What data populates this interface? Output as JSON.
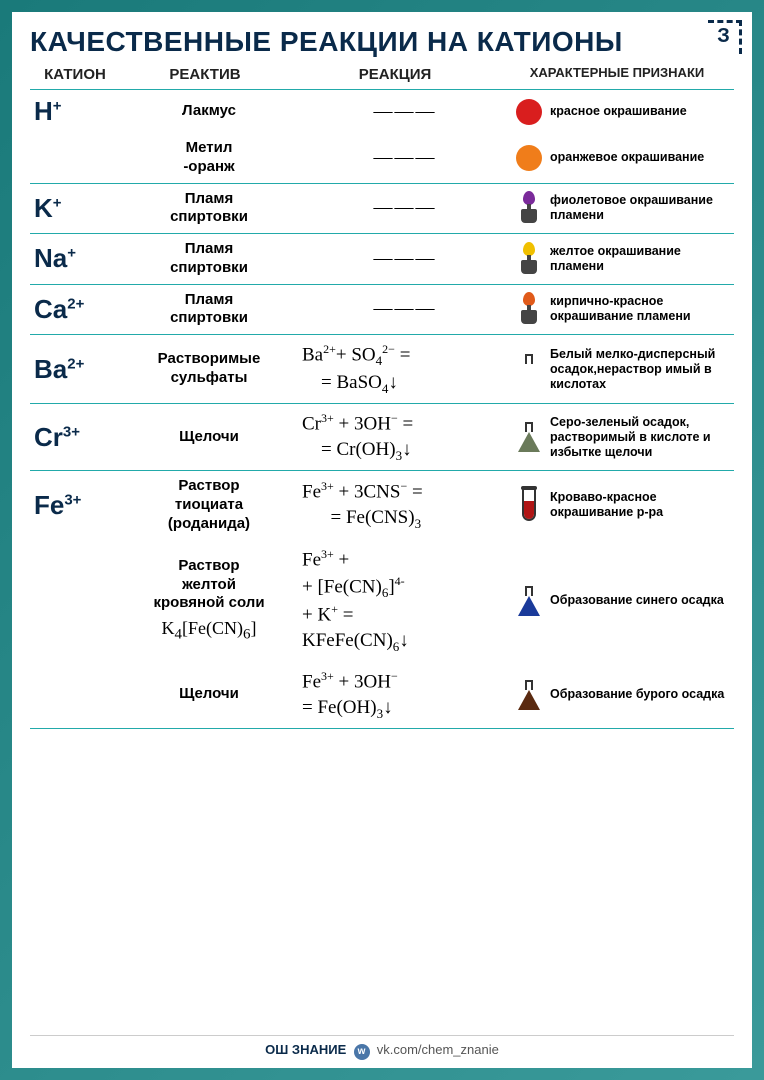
{
  "corner_mark": "З",
  "title": "КАЧЕСТВЕННЫЕ РЕАКЦИИ НА КАТИОНЫ",
  "headers": {
    "c1": "КАТИОН",
    "c2": "РЕАКТИВ",
    "c3": "РЕАКЦИЯ",
    "c4": "ХАРАКТЕРНЫЕ ПРИЗНАКИ"
  },
  "colors": {
    "red": "#d91e1e",
    "orange": "#f07d1a",
    "violet": "#7a2a9a",
    "yellow": "#f0c000",
    "brick": "#e05a1a",
    "white": "#ffffff",
    "greygreen": "#6a7a5a",
    "bloodred": "#b01515",
    "blue": "#1a3a9a",
    "brown": "#5a2a10",
    "outline": "#333333"
  },
  "rows": [
    {
      "cation": "H",
      "charge": "+",
      "reagent_lines": [
        "Лакмус"
      ],
      "reaction_html": "———",
      "icon": {
        "type": "dot",
        "color_key": "red"
      },
      "sign": "красное окрашивание",
      "sub": true
    },
    {
      "cation": "",
      "charge": "",
      "reagent_lines": [
        "Метил",
        "-оранж"
      ],
      "reaction_html": "———",
      "icon": {
        "type": "dot",
        "color_key": "orange"
      },
      "sign": "оранжевое окрашивание",
      "last_sub": true
    },
    {
      "cation": "K",
      "charge": "+",
      "reagent_lines": [
        "Пламя",
        "спиртовки"
      ],
      "reaction_html": "———",
      "icon": {
        "type": "burner",
        "color_key": "violet"
      },
      "sign": "фиолетовое окрашивание пламени"
    },
    {
      "cation": "Na",
      "charge": "+",
      "reagent_lines": [
        "Пламя",
        "спиртовки"
      ],
      "reaction_html": "———",
      "icon": {
        "type": "burner",
        "color_key": "yellow"
      },
      "sign": "желтое окрашивание пламени"
    },
    {
      "cation": "Ca",
      "charge": "2+",
      "reagent_lines": [
        "Пламя",
        "спиртовки"
      ],
      "reaction_html": "———",
      "icon": {
        "type": "burner",
        "color_key": "brick"
      },
      "sign": "кирпично-красное окрашивание пламени"
    },
    {
      "cation": "Ba",
      "charge": "2+",
      "reagent_lines": [
        "Растворимые",
        "сульфаты"
      ],
      "reaction_html": "Ba<sup>2+</sup>+ SO<sub>4</sub><sup>2−</sup> =<br>&nbsp;&nbsp;&nbsp;&nbsp;= BaSO<sub>4</sub>↓",
      "icon": {
        "type": "flask",
        "color_key": "white"
      },
      "sign": "Белый мелко-дисперсный осадок,нераствор имый в кислотах"
    },
    {
      "cation": "Cr",
      "charge": "3+",
      "reagent_lines": [
        "Щелочи"
      ],
      "reaction_html": "Cr<sup>3+</sup> + 3OH<sup>−</sup> =<br>&nbsp;&nbsp;&nbsp;&nbsp;= Cr(OH)<sub>3</sub>↓",
      "icon": {
        "type": "flask",
        "color_key": "greygreen"
      },
      "sign": "Серо-зеленый осадок, растворимый в кислоте и избытке щелочи"
    },
    {
      "cation": "Fe",
      "charge": "3+",
      "reagent_lines": [
        "Раствор",
        "тиоциата",
        "(роданида)"
      ],
      "reaction_html": "Fe<sup>3+</sup> + 3CNS<sup>−</sup> =<br>&nbsp;&nbsp;&nbsp;&nbsp;&nbsp;&nbsp;= Fe(CNS)<sub>3</sub>",
      "icon": {
        "type": "tube",
        "color_key": "bloodred",
        "fill_h": "60%"
      },
      "sign": "Кроваво-красное окрашивание р-ра",
      "sub": true
    },
    {
      "cation": "",
      "charge": "",
      "reagent_lines": [
        "Раствор",
        "желтой",
        "кровяной соли"
      ],
      "reagent_formula": "K<sub>4</sub>[Fe(CN)<sub>6</sub>]",
      "reaction_html": "Fe<sup>3+</sup> +<br>+ [Fe(CN)<sub>6</sub>]<sup>4-</sup><br>+ K<sup>+</sup> =<br>KFeFe(CN)<sub>6</sub>↓",
      "icon": {
        "type": "flask",
        "color_key": "blue"
      },
      "sign": "Образование синего осадка",
      "sub": true
    },
    {
      "cation": "",
      "charge": "",
      "reagent_lines": [
        "Щелочи"
      ],
      "reaction_html": "Fe<sup>3+</sup> + 3OH<sup>−</sup><br>= Fe(OH)<sub>3</sub>↓",
      "icon": {
        "type": "flask",
        "color_key": "brown"
      },
      "sign": "Образование бурого осадка",
      "last_sub": true
    }
  ],
  "footer": {
    "brand": "ОШ ЗНАНИЕ",
    "link": "vk.com/chem_znanie"
  }
}
